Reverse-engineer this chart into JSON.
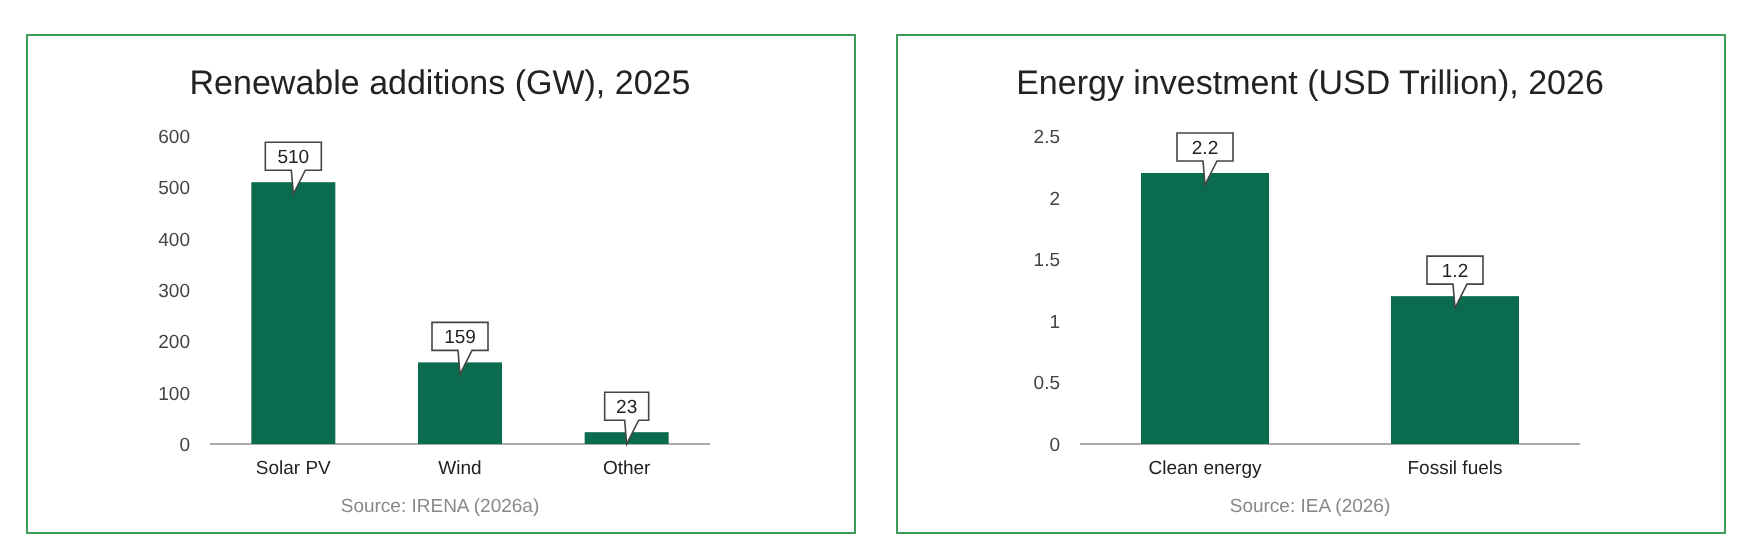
{
  "chart_data": [
    {
      "type": "bar",
      "title": "Renewable additions (GW), 2025",
      "categories": [
        "Solar PV",
        "Wind",
        "Other"
      ],
      "values": [
        510,
        159,
        23
      ],
      "color": "#0b6b4f",
      "ylim": [
        0,
        600
      ],
      "yticks": [
        0,
        100,
        200,
        300,
        400,
        500,
        600
      ],
      "data_labels": true,
      "annotations": [
        "Source: IRENA (2026a)"
      ]
    },
    {
      "type": "bar",
      "title": "Energy investment (USD Trillion), 2026",
      "categories": [
        "Clean energy",
        "Fossil fuels"
      ],
      "values": [
        2.2,
        1.2
      ],
      "color": "#0b6b4f",
      "ylim": [
        0,
        2.5
      ],
      "yticks": [
        0,
        0.5,
        1,
        1.5,
        2,
        2.5
      ],
      "data_labels": true,
      "annotations": [
        "Source: IEA (2026)"
      ]
    }
  ]
}
